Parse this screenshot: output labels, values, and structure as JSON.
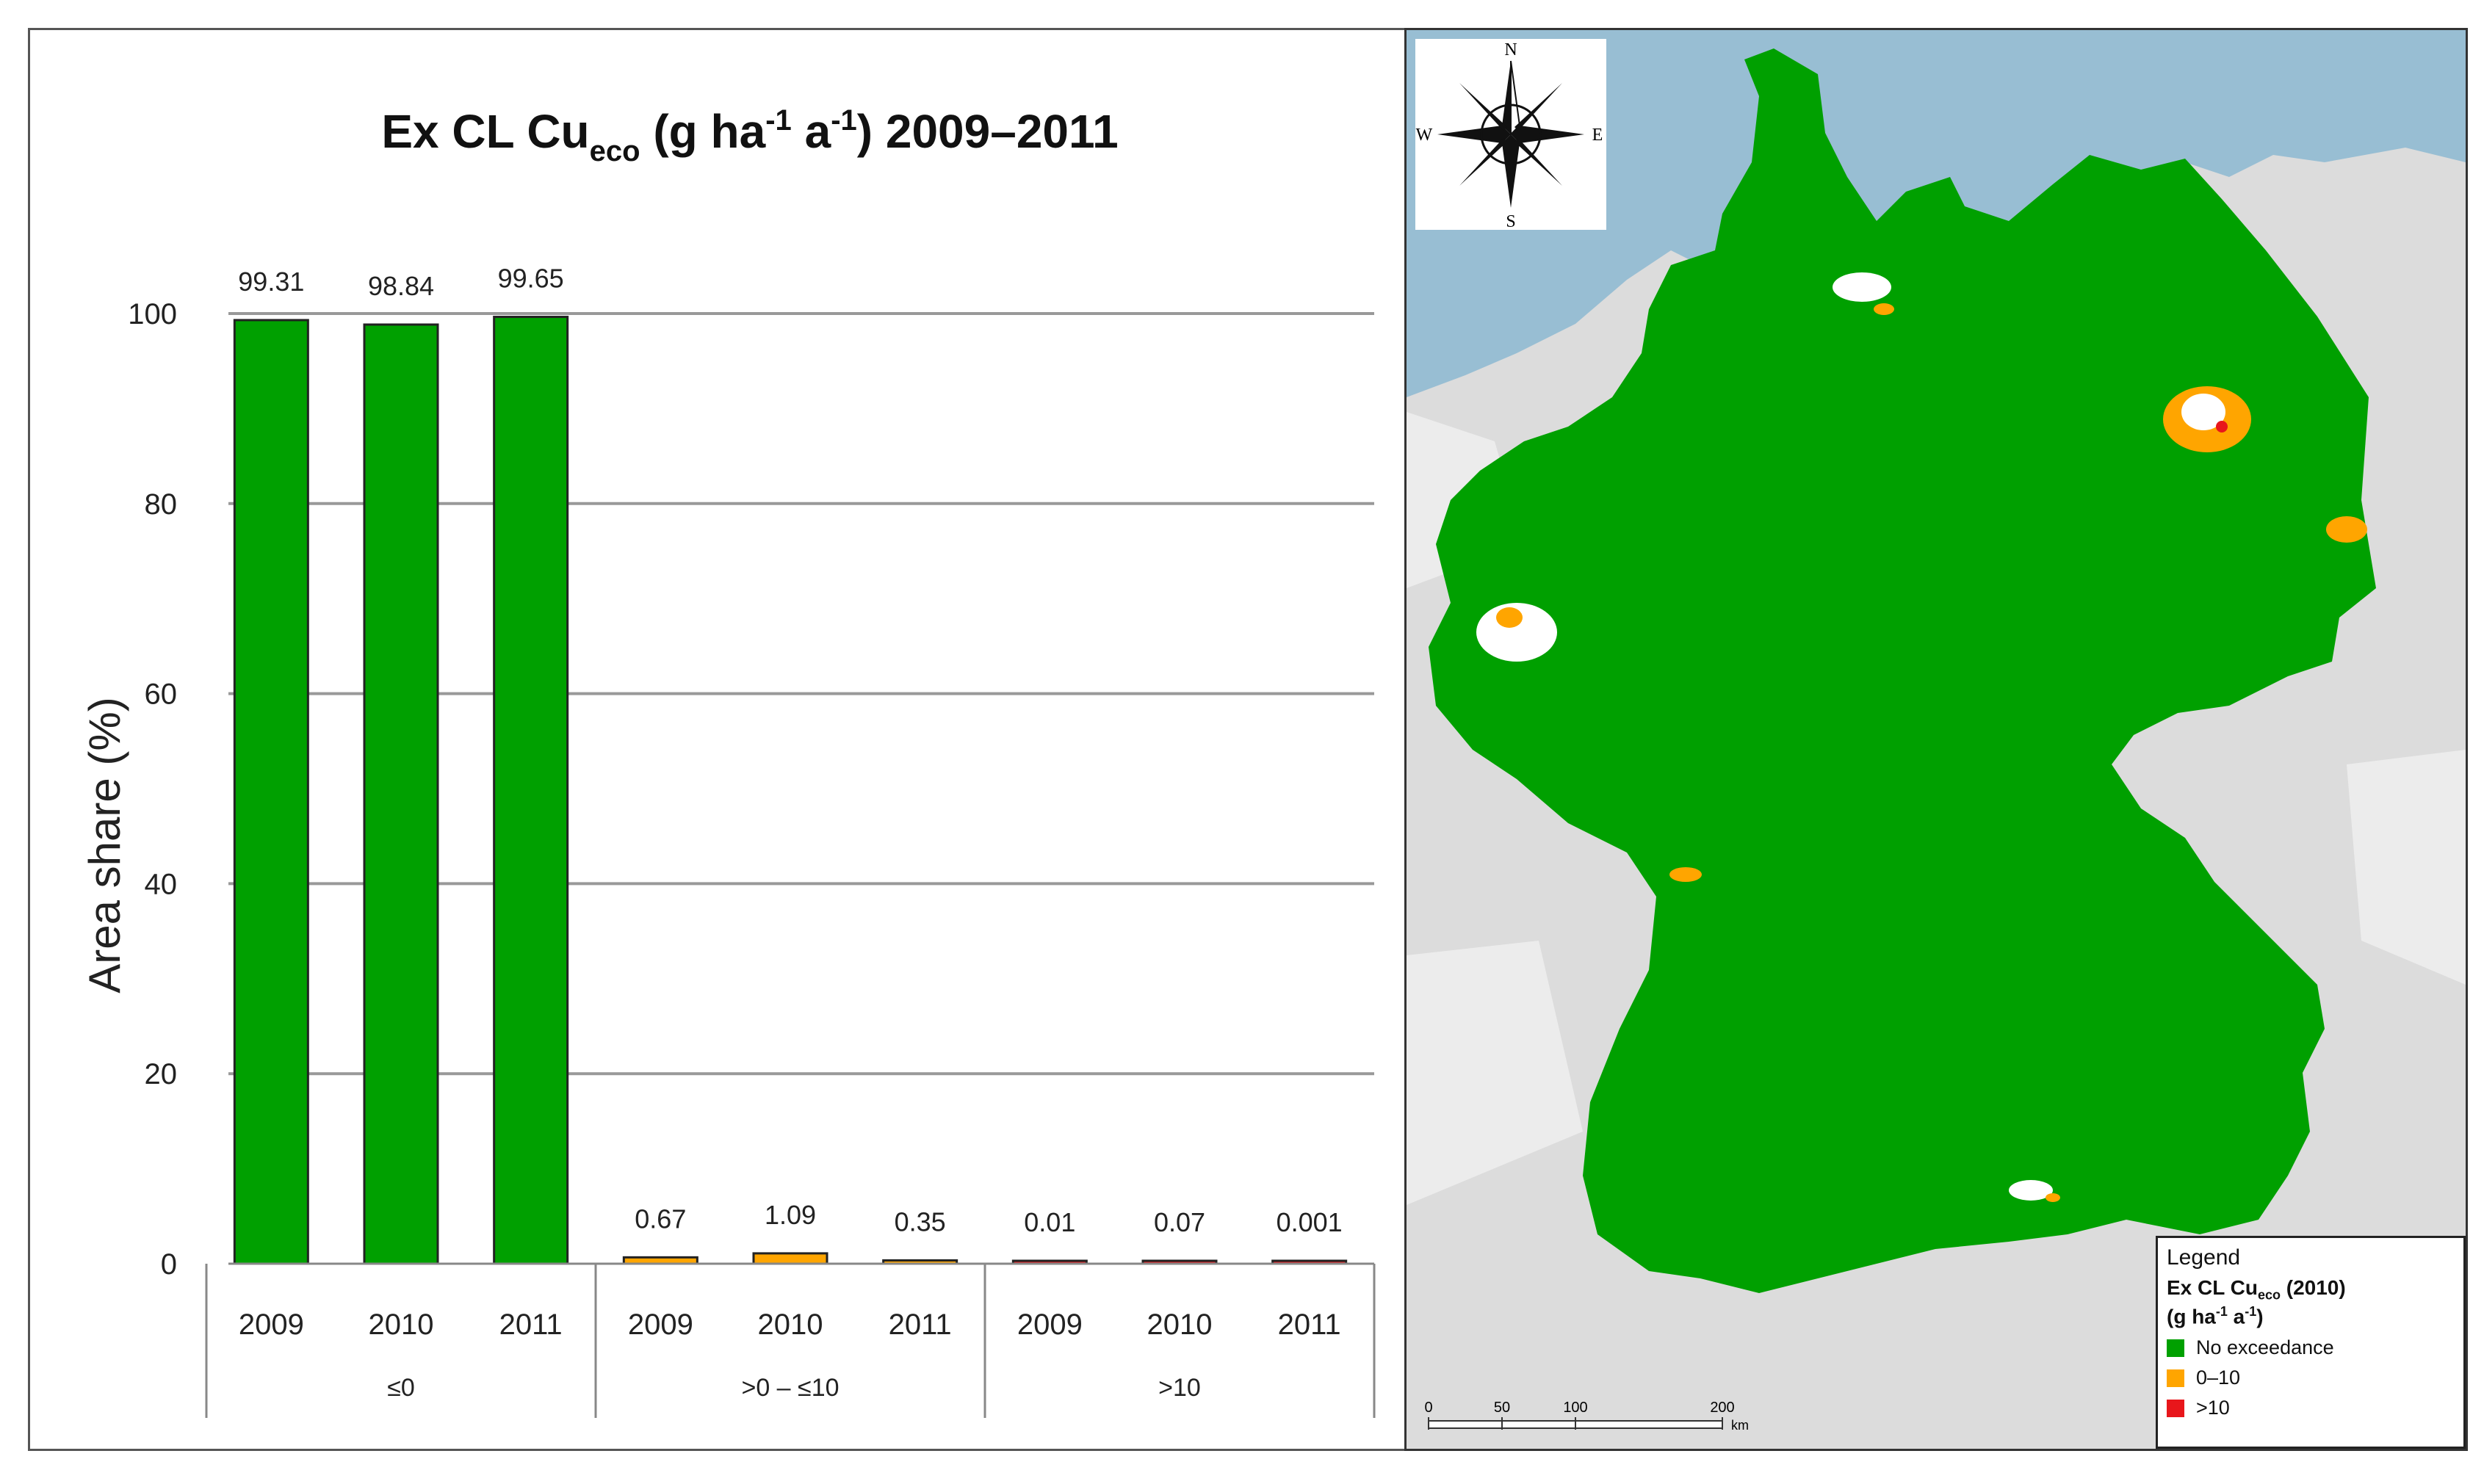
{
  "chart_data": {
    "type": "bar",
    "title": {
      "main": "Ex CL Cu",
      "sub": "eco",
      "rest1": " (g ha",
      "sup1": "-1",
      "rest2": " a",
      "sup2": "-1",
      "rest3": ") 2009–2011"
    },
    "ylabel": "Area share (%)",
    "ylim": [
      0,
      100
    ],
    "yticks": [
      "0",
      "20",
      "40",
      "60",
      "80",
      "100"
    ],
    "grid": true,
    "groups": [
      {
        "label": "≤0",
        "bars": [
          {
            "year": "2009",
            "value": 99.31,
            "label": "99.31"
          },
          {
            "year": "2010",
            "value": 98.84,
            "label": "98.84"
          },
          {
            "year": "2011",
            "value": 99.65,
            "label": "99.65"
          }
        ]
      },
      {
        "label": ">0 – ≤10",
        "bars": [
          {
            "year": "2009",
            "value": 0.67,
            "label": "0.67"
          },
          {
            "year": "2010",
            "value": 1.09,
            "label": "1.09"
          },
          {
            "year": "2011",
            "value": 0.35,
            "label": "0.35"
          }
        ]
      },
      {
        "label": ">10",
        "bars": [
          {
            "year": "2009",
            "value": 0.01,
            "label": "0.01"
          },
          {
            "year": "2010",
            "value": 0.07,
            "label": "0.07"
          },
          {
            "year": "2011",
            "value": 0.001,
            "label": "0.001"
          }
        ]
      }
    ],
    "colors": {
      "le0": "#00a000",
      "gt0_le10": "#ffa500",
      "gt10": "#e8161b"
    }
  },
  "map": {
    "compass": {
      "n": "N",
      "s": "S",
      "e": "E",
      "w": "W"
    },
    "legend": {
      "title": "Legend",
      "heading": "Ex CL Cu",
      "heading_sub": "eco",
      "heading_rest": " (2010)",
      "unit": "(g ha",
      "unit_sup1": "-1",
      "unit_mid": " a",
      "unit_sup2": "-1",
      "unit_end": ")",
      "items": [
        {
          "label": "No exceedance",
          "color": "#00a000"
        },
        {
          "label": "0–10",
          "color": "#ffa500"
        },
        {
          "label": ">10",
          "color": "#e8161b"
        }
      ]
    },
    "scalebar": {
      "ticks": [
        "0",
        "50",
        "100",
        "200"
      ],
      "unit": "km"
    },
    "colors": {
      "sea": "#98bed3",
      "land_bg": "#dcdcdc",
      "country": "#00a000"
    }
  }
}
